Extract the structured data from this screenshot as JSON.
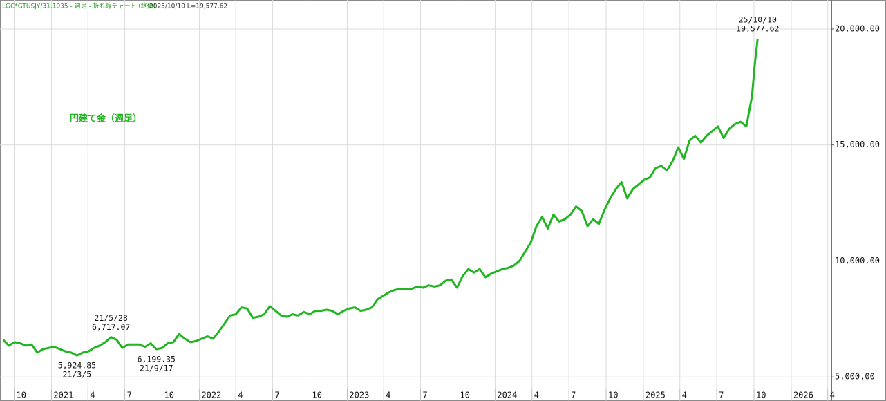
{
  "chart_data": {
    "type": "line",
    "header": "LGC*GTUSJY/31.1035 - 週足 - 折れ線チャート (終値)",
    "header_info": "2025/10/10 L=19,577.62",
    "title": "円建て金（週足）",
    "color": "#22b522",
    "grid": true,
    "xlim": [
      "2020-08-27",
      "2026-04-10"
    ],
    "ylim": [
      4500,
      21250
    ],
    "yticks": [
      {
        "value": 5000,
        "label": "5,000.00"
      },
      {
        "value": 10000,
        "label": "10,000.00"
      },
      {
        "value": 15000,
        "label": "15,000.00"
      },
      {
        "value": 20000,
        "label": "20,000.00"
      }
    ],
    "xticks": [
      {
        "value": "2020-10-01",
        "label": "10"
      },
      {
        "value": "2021-01-01",
        "label": "2021"
      },
      {
        "value": "2021-04-01",
        "label": "4"
      },
      {
        "value": "2021-07-01",
        "label": "7"
      },
      {
        "value": "2021-10-01",
        "label": "10"
      },
      {
        "value": "2022-01-01",
        "label": "2022"
      },
      {
        "value": "2022-04-01",
        "label": "4"
      },
      {
        "value": "2022-07-01",
        "label": "7"
      },
      {
        "value": "2022-10-01",
        "label": "10"
      },
      {
        "value": "2023-01-01",
        "label": "2023"
      },
      {
        "value": "2023-04-01",
        "label": "4"
      },
      {
        "value": "2023-07-01",
        "label": "7"
      },
      {
        "value": "2023-10-01",
        "label": "10"
      },
      {
        "value": "2024-01-01",
        "label": "2024"
      },
      {
        "value": "2024-04-01",
        "label": "4"
      },
      {
        "value": "2024-07-01",
        "label": "7"
      },
      {
        "value": "2024-10-01",
        "label": "10"
      },
      {
        "value": "2025-01-01",
        "label": "2025"
      },
      {
        "value": "2025-04-01",
        "label": "4"
      },
      {
        "value": "2025-07-01",
        "label": "7"
      },
      {
        "value": "2025-10-01",
        "label": "10"
      },
      {
        "value": "2026-01-01",
        "label": "2026"
      },
      {
        "value": "2026-04-01",
        "label": "4"
      }
    ],
    "x": [
      "2020-09-04",
      "2020-09-18",
      "2020-10-02",
      "2020-10-16",
      "2020-10-30",
      "2020-11-13",
      "2020-11-27",
      "2020-12-11",
      "2020-12-25",
      "2021-01-08",
      "2021-01-22",
      "2021-02-05",
      "2021-02-19",
      "2021-03-05",
      "2021-03-19",
      "2021-04-02",
      "2021-04-16",
      "2021-04-30",
      "2021-05-14",
      "2021-05-28",
      "2021-06-11",
      "2021-06-25",
      "2021-07-09",
      "2021-07-23",
      "2021-08-06",
      "2021-08-20",
      "2021-09-03",
      "2021-09-17",
      "2021-10-01",
      "2021-10-15",
      "2021-10-29",
      "2021-11-12",
      "2021-11-26",
      "2021-12-10",
      "2021-12-24",
      "2022-01-07",
      "2022-01-21",
      "2022-02-04",
      "2022-02-18",
      "2022-03-04",
      "2022-03-18",
      "2022-04-01",
      "2022-04-15",
      "2022-04-29",
      "2022-05-13",
      "2022-05-27",
      "2022-06-10",
      "2022-06-24",
      "2022-07-08",
      "2022-07-22",
      "2022-08-05",
      "2022-08-19",
      "2022-09-02",
      "2022-09-16",
      "2022-09-30",
      "2022-10-14",
      "2022-10-28",
      "2022-11-11",
      "2022-11-25",
      "2022-12-09",
      "2022-12-23",
      "2023-01-06",
      "2023-01-20",
      "2023-02-03",
      "2023-02-17",
      "2023-03-03",
      "2023-03-17",
      "2023-03-31",
      "2023-04-14",
      "2023-04-28",
      "2023-05-12",
      "2023-05-26",
      "2023-06-09",
      "2023-06-23",
      "2023-07-07",
      "2023-07-21",
      "2023-08-04",
      "2023-08-18",
      "2023-09-01",
      "2023-09-15",
      "2023-09-29",
      "2023-10-13",
      "2023-10-27",
      "2023-11-10",
      "2023-11-24",
      "2023-12-08",
      "2023-12-22",
      "2024-01-05",
      "2024-01-19",
      "2024-02-02",
      "2024-02-16",
      "2024-03-01",
      "2024-03-15",
      "2024-03-29",
      "2024-04-12",
      "2024-04-26",
      "2024-05-10",
      "2024-05-24",
      "2024-06-07",
      "2024-06-21",
      "2024-07-05",
      "2024-07-19",
      "2024-08-02",
      "2024-08-16",
      "2024-08-30",
      "2024-09-13",
      "2024-09-27",
      "2024-10-11",
      "2024-10-25",
      "2024-11-08",
      "2024-11-22",
      "2024-12-06",
      "2024-12-20",
      "2025-01-03",
      "2025-01-17",
      "2025-01-31",
      "2025-02-14",
      "2025-02-28",
      "2025-03-14",
      "2025-03-28",
      "2025-04-11",
      "2025-04-25",
      "2025-05-09",
      "2025-05-23",
      "2025-06-06",
      "2025-06-20",
      "2025-07-04",
      "2025-07-18",
      "2025-08-01",
      "2025-08-15",
      "2025-08-29",
      "2025-09-12",
      "2025-09-26",
      "2025-10-03",
      "2025-10-10"
    ],
    "values": [
      6600,
      6350,
      6500,
      6450,
      6350,
      6400,
      6050,
      6200,
      6250,
      6300,
      6200,
      6100,
      6050,
      5924.85,
      6050,
      6100,
      6250,
      6350,
      6500,
      6717.07,
      6600,
      6250,
      6400,
      6400,
      6400,
      6300,
      6450,
      6199.35,
      6250,
      6450,
      6500,
      6850,
      6650,
      6500,
      6550,
      6650,
      6750,
      6650,
      6950,
      7300,
      7650,
      7700,
      8000,
      7950,
      7550,
      7600,
      7700,
      8050,
      7850,
      7650,
      7600,
      7700,
      7650,
      7800,
      7700,
      7850,
      7850,
      7900,
      7850,
      7700,
      7850,
      7950,
      8000,
      7850,
      7900,
      8000,
      8350,
      8500,
      8650,
      8750,
      8800,
      8800,
      8800,
      8900,
      8850,
      8950,
      8900,
      8950,
      9150,
      9200,
      8850,
      9350,
      9650,
      9500,
      9650,
      9300,
      9450,
      9550,
      9650,
      9700,
      9800,
      10000,
      10400,
      10800,
      11500,
      11900,
      11400,
      12000,
      11700,
      11800,
      12000,
      12350,
      12150,
      11500,
      11800,
      11600,
      12200,
      12700,
      13100,
      13400,
      12700,
      13100,
      13300,
      13500,
      13600,
      14000,
      14100,
      13900,
      14300,
      14900,
      14400,
      15200,
      15400,
      15100,
      15400,
      15600,
      15800,
      15300,
      15700,
      15900,
      16000,
      15800,
      17100,
      18500,
      19577.62
    ],
    "annotations": [
      {
        "x": "2021-03-05",
        "y": 5924.85,
        "label": "5,924.85",
        "date": "21/3/5",
        "position": "below"
      },
      {
        "x": "2021-05-28",
        "y": 6717.07,
        "label": "6,717.07",
        "date": "21/5/28",
        "position": "above"
      },
      {
        "x": "2021-09-17",
        "y": 6199.35,
        "label": "6,199.35",
        "date": "21/9/17",
        "position": "below"
      },
      {
        "x": "2025-10-10",
        "y": 19577.62,
        "label": "19,577.62",
        "date": "25/10/10",
        "position": "above"
      }
    ]
  }
}
